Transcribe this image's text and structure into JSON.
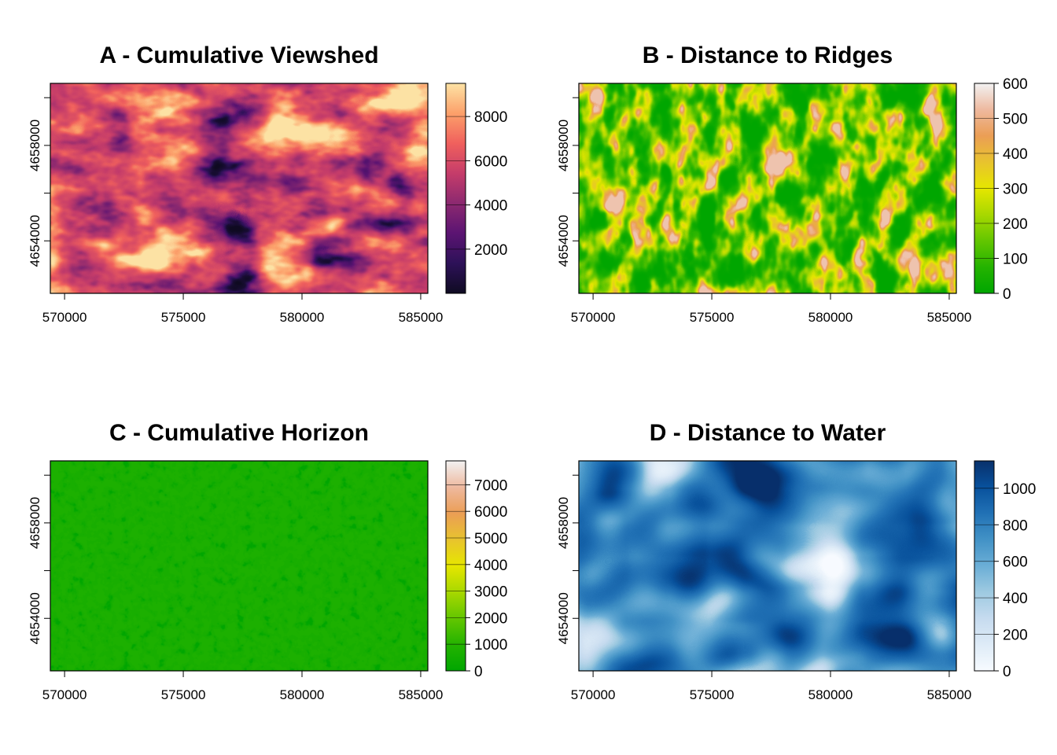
{
  "chart_data": [
    {
      "type": "heatmap",
      "title": "A - Cumulative Viewshed",
      "palette": "magma",
      "colors": [
        "#0f0b22",
        "#2d1158",
        "#5b1472",
        "#8c2970",
        "#c53c6a",
        "#f0605d",
        "#fca06a",
        "#fde3a5"
      ],
      "xlim": [
        569400,
        585300
      ],
      "ylim": [
        4651800,
        4660600
      ],
      "x_ticks": [
        570000,
        575000,
        580000,
        585000
      ],
      "x_tick_labels": [
        "570000",
        "575000",
        "580000",
        "585000"
      ],
      "y_ticks": [
        4654000,
        4656000,
        4658000,
        4660000
      ],
      "y_tick_labels": [
        "4654000",
        "",
        "4658000",
        ""
      ],
      "legend": {
        "range": [
          0,
          9500
        ],
        "ticks": [
          2000,
          4000,
          6000,
          8000
        ],
        "tick_labels": [
          "2000",
          "4000",
          "6000",
          "8000"
        ]
      }
    },
    {
      "type": "heatmap",
      "title": "B - Distance to Ridges",
      "palette": "terrain",
      "colors": [
        "#00a600",
        "#24b300",
        "#63c600",
        "#a8d800",
        "#e6e600",
        "#e8c32e",
        "#eb9e55",
        "#eeb99f",
        "#f2f2f2"
      ],
      "xlim": [
        569400,
        585300
      ],
      "ylim": [
        4651800,
        4660600
      ],
      "x_ticks": [
        570000,
        575000,
        580000,
        585000
      ],
      "x_tick_labels": [
        "570000",
        "575000",
        "580000",
        "585000"
      ],
      "y_ticks": [
        4654000,
        4656000,
        4658000,
        4660000
      ],
      "y_tick_labels": [
        "4654000",
        "",
        "4658000",
        ""
      ],
      "legend": {
        "range": [
          0,
          600
        ],
        "ticks": [
          0,
          100,
          200,
          300,
          400,
          500,
          600
        ],
        "tick_labels": [
          "0",
          "100",
          "200",
          "300",
          "400",
          "500",
          "600"
        ]
      }
    },
    {
      "type": "heatmap",
      "title": "C - Cumulative Horizon",
      "palette": "terrain",
      "colors": [
        "#00a600",
        "#24b300",
        "#63c600",
        "#a8d800",
        "#e6e600",
        "#e8c32e",
        "#eb9e55",
        "#eeb99f",
        "#f2f2f2"
      ],
      "xlim": [
        569400,
        585300
      ],
      "ylim": [
        4651800,
        4660600
      ],
      "x_ticks": [
        570000,
        575000,
        580000,
        585000
      ],
      "x_tick_labels": [
        "570000",
        "575000",
        "580000",
        "585000"
      ],
      "y_ticks": [
        4654000,
        4656000,
        4658000,
        4660000
      ],
      "y_tick_labels": [
        "4654000",
        "",
        "4658000",
        ""
      ],
      "legend": {
        "range": [
          0,
          7900
        ],
        "ticks": [
          0,
          1000,
          2000,
          3000,
          4000,
          5000,
          6000,
          7000
        ],
        "tick_labels": [
          "0",
          "1000",
          "2000",
          "3000",
          "4000",
          "5000",
          "6000",
          "7000"
        ]
      }
    },
    {
      "type": "heatmap",
      "title": "D - Distance to Water",
      "palette": "blues",
      "colors": [
        "#f7fbff",
        "#deebf7",
        "#c6dbef",
        "#9ecae1",
        "#6baed6",
        "#4292c6",
        "#2171b5",
        "#08519c",
        "#08306b"
      ],
      "xlim": [
        569400,
        585300
      ],
      "ylim": [
        4651800,
        4660600
      ],
      "x_ticks": [
        570000,
        575000,
        580000,
        585000
      ],
      "x_tick_labels": [
        "570000",
        "575000",
        "580000",
        "585000"
      ],
      "y_ticks": [
        4654000,
        4656000,
        4658000,
        4660000
      ],
      "y_tick_labels": [
        "4654000",
        "",
        "4658000",
        ""
      ],
      "legend": {
        "range": [
          0,
          1150
        ],
        "ticks": [
          0,
          200,
          400,
          600,
          800,
          1000
        ],
        "tick_labels": [
          "0",
          "200",
          "400",
          "600",
          "800",
          "1000"
        ]
      }
    }
  ]
}
